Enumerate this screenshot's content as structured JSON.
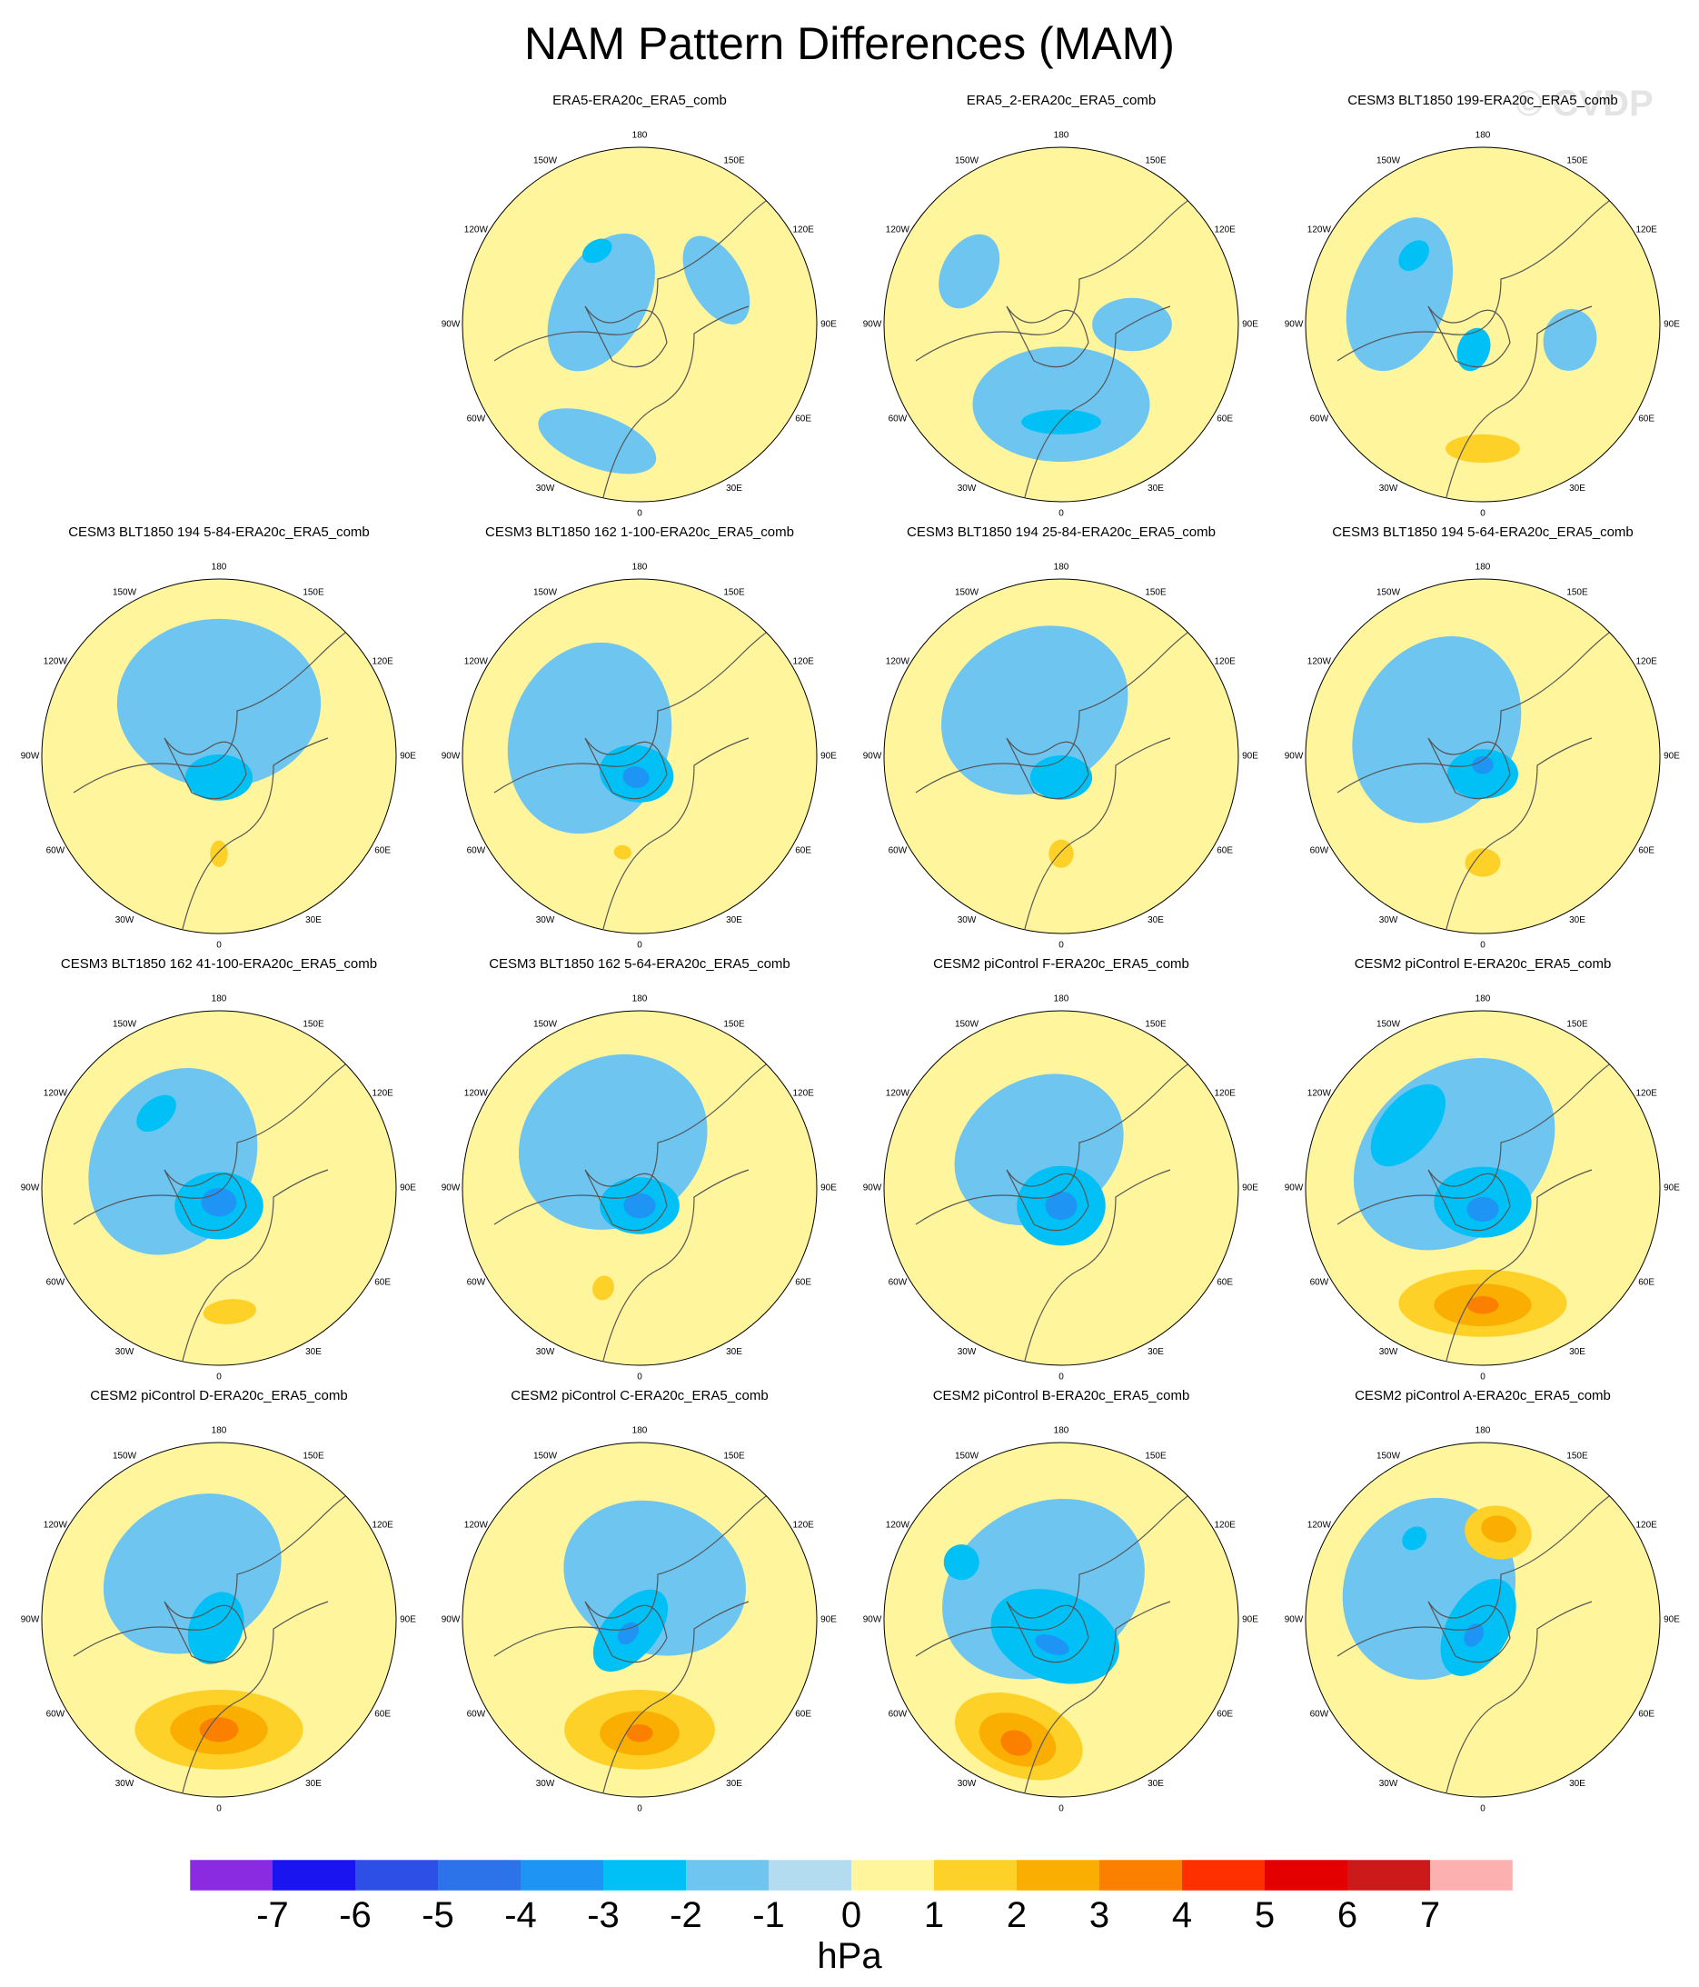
{
  "title": "NAM Pattern Differences (MAM)",
  "watermark": "© CVDP",
  "chart_data": {
    "type": "polar-contour-map-grid",
    "projection": "north polar stereographic",
    "season": "MAM",
    "longitude_labels": [
      "180",
      "150E",
      "120E",
      "90E",
      "60E",
      "30E",
      "0",
      "30W",
      "60W",
      "90W",
      "120W",
      "150W"
    ],
    "panels": [
      {
        "title": "",
        "empty": true
      },
      {
        "title": "ERA5-ERA20c_ERA5_comb",
        "features": [
          {
            "level": -1,
            "lon": 300,
            "r": 0.25,
            "w": 0.85,
            "h": 0.5
          },
          {
            "level": -1,
            "lon": 200,
            "r": 0.7,
            "w": 0.7,
            "h": 0.3
          },
          {
            "level": -1,
            "lon": 60,
            "r": 0.5,
            "w": 0.55,
            "h": 0.3
          },
          {
            "level": -2,
            "lon": 330,
            "r": 0.48,
            "w": 0.18,
            "h": 0.12
          }
        ]
      },
      {
        "title": "ERA5_2-ERA20c_ERA5_comb",
        "features": [
          {
            "level": -1,
            "lon": 180,
            "r": 0.45,
            "w": 1.0,
            "h": 0.65
          },
          {
            "level": -1,
            "lon": 300,
            "r": 0.6,
            "w": 0.45,
            "h": 0.3
          },
          {
            "level": -1,
            "lon": 90,
            "r": 0.4,
            "w": 0.3,
            "h": 0.45
          },
          {
            "level": -2,
            "lon": 180,
            "r": 0.55,
            "w": 0.45,
            "h": 0.14
          }
        ]
      },
      {
        "title": "CESM3 BLT1850 199-ERA20c_ERA5_comb",
        "features": [
          {
            "level": -1,
            "lon": 290,
            "r": 0.5,
            "w": 0.9,
            "h": 0.55
          },
          {
            "level": -1,
            "lon": 100,
            "r": 0.5,
            "w": 0.35,
            "h": 0.3
          },
          {
            "level": -2,
            "lon": 200,
            "r": 0.15,
            "w": 0.18,
            "h": 0.25
          },
          {
            "level": -2,
            "lon": 315,
            "r": 0.55,
            "w": 0.2,
            "h": 0.14
          },
          {
            "level": 1,
            "lon": 180,
            "r": 0.7,
            "w": 0.42,
            "h": 0.16
          }
        ]
      },
      {
        "title": "CESM3 BLT1850 194 5-84-ERA20c_ERA5_comb",
        "features": [
          {
            "level": -1,
            "lon": 0,
            "r": 0.3,
            "w": 1.15,
            "h": 0.95
          },
          {
            "level": -2,
            "lon": 180,
            "r": 0.12,
            "w": 0.38,
            "h": 0.26
          },
          {
            "level": 1,
            "lon": 180,
            "r": 0.55,
            "w": 0.1,
            "h": 0.15
          }
        ]
      },
      {
        "title": "CESM3 BLT1850 162 1-100-ERA20c_ERA5_comb",
        "features": [
          {
            "level": -1,
            "lon": 290,
            "r": 0.3,
            "w": 1.1,
            "h": 0.9
          },
          {
            "level": -2,
            "lon": 190,
            "r": 0.1,
            "w": 0.42,
            "h": 0.32
          },
          {
            "level": -3,
            "lon": 190,
            "r": 0.12,
            "w": 0.15,
            "h": 0.12
          },
          {
            "level": 1,
            "lon": 190,
            "r": 0.55,
            "w": 0.1,
            "h": 0.08
          }
        ]
      },
      {
        "title": "CESM3 BLT1850 194 25-84-ERA20c_ERA5_comb",
        "features": [
          {
            "level": -1,
            "lon": 330,
            "r": 0.3,
            "w": 1.1,
            "h": 0.9
          },
          {
            "level": -2,
            "lon": 180,
            "r": 0.12,
            "w": 0.35,
            "h": 0.25
          },
          {
            "level": 1,
            "lon": 180,
            "r": 0.55,
            "w": 0.14,
            "h": 0.16
          }
        ]
      },
      {
        "title": "CESM3 BLT1850 194 5-64-ERA20c_ERA5_comb",
        "features": [
          {
            "level": -1,
            "lon": 300,
            "r": 0.3,
            "w": 1.1,
            "h": 0.9
          },
          {
            "level": -2,
            "lon": 180,
            "r": 0.1,
            "w": 0.4,
            "h": 0.28
          },
          {
            "level": -3,
            "lon": 180,
            "r": 0.05,
            "w": 0.12,
            "h": 0.1
          },
          {
            "level": 1,
            "lon": 180,
            "r": 0.6,
            "w": 0.2,
            "h": 0.16
          }
        ]
      },
      {
        "title": "CESM3 BLT1850 162 41-100-ERA20c_ERA5_comb",
        "features": [
          {
            "level": -1,
            "lon": 300,
            "r": 0.3,
            "w": 1.1,
            "h": 0.9
          },
          {
            "level": -2,
            "lon": 180,
            "r": 0.1,
            "w": 0.5,
            "h": 0.38
          },
          {
            "level": -3,
            "lon": 180,
            "r": 0.08,
            "w": 0.2,
            "h": 0.16
          },
          {
            "level": -2,
            "lon": 320,
            "r": 0.55,
            "w": 0.26,
            "h": 0.16
          },
          {
            "level": 1,
            "lon": 175,
            "r": 0.7,
            "w": 0.3,
            "h": 0.14
          }
        ]
      },
      {
        "title": "CESM3 BLT1850 162 5-64-ERA20c_ERA5_comb",
        "features": [
          {
            "level": -1,
            "lon": 330,
            "r": 0.3,
            "w": 1.1,
            "h": 0.95
          },
          {
            "level": -2,
            "lon": 180,
            "r": 0.1,
            "w": 0.45,
            "h": 0.32
          },
          {
            "level": -3,
            "lon": 180,
            "r": 0.1,
            "w": 0.18,
            "h": 0.14
          },
          {
            "level": 1,
            "lon": 200,
            "r": 0.6,
            "w": 0.12,
            "h": 0.14
          }
        ]
      },
      {
        "title": "CESM2 piControl F-ERA20c_ERA5_comb",
        "features": [
          {
            "level": -1,
            "lon": 330,
            "r": 0.25,
            "w": 1.0,
            "h": 0.8
          },
          {
            "level": -2,
            "lon": 180,
            "r": 0.1,
            "w": 0.5,
            "h": 0.45
          },
          {
            "level": -3,
            "lon": 180,
            "r": 0.1,
            "w": 0.18,
            "h": 0.16
          }
        ]
      },
      {
        "title": "CESM2 piControl E-ERA20c_ERA5_comb",
        "features": [
          {
            "level": -1,
            "lon": 320,
            "r": 0.25,
            "w": 1.25,
            "h": 0.95
          },
          {
            "level": -2,
            "lon": 180,
            "r": 0.08,
            "w": 0.55,
            "h": 0.4
          },
          {
            "level": -3,
            "lon": 180,
            "r": 0.12,
            "w": 0.18,
            "h": 0.14
          },
          {
            "level": -2,
            "lon": 310,
            "r": 0.55,
            "w": 0.55,
            "h": 0.3
          },
          {
            "level": 1,
            "lon": 180,
            "r": 0.65,
            "w": 0.95,
            "h": 0.38
          },
          {
            "level": 2,
            "lon": 180,
            "r": 0.66,
            "w": 0.55,
            "h": 0.24
          },
          {
            "level": 3,
            "lon": 180,
            "r": 0.66,
            "w": 0.18,
            "h": 0.1
          }
        ]
      },
      {
        "title": "CESM2 piControl D-ERA20c_ERA5_comb",
        "features": [
          {
            "level": -1,
            "lon": 330,
            "r": 0.3,
            "w": 1.05,
            "h": 0.85
          },
          {
            "level": -2,
            "lon": 200,
            "r": 0.05,
            "w": 0.3,
            "h": 0.42
          },
          {
            "level": 1,
            "lon": 180,
            "r": 0.62,
            "w": 0.95,
            "h": 0.45
          },
          {
            "level": 2,
            "lon": 180,
            "r": 0.62,
            "w": 0.55,
            "h": 0.28
          },
          {
            "level": 3,
            "lon": 180,
            "r": 0.62,
            "w": 0.22,
            "h": 0.14
          }
        ]
      },
      {
        "title": "CESM2 piControl C-ERA20c_ERA5_comb",
        "features": [
          {
            "level": -1,
            "lon": 20,
            "r": 0.25,
            "w": 1.05,
            "h": 0.85
          },
          {
            "level": -2,
            "lon": 220,
            "r": 0.08,
            "w": 0.3,
            "h": 0.55
          },
          {
            "level": -3,
            "lon": 220,
            "r": 0.1,
            "w": 0.1,
            "h": 0.14
          },
          {
            "level": 1,
            "lon": 180,
            "r": 0.62,
            "w": 0.85,
            "h": 0.45
          },
          {
            "level": 2,
            "lon": 180,
            "r": 0.64,
            "w": 0.45,
            "h": 0.25
          },
          {
            "level": 3,
            "lon": 180,
            "r": 0.64,
            "w": 0.15,
            "h": 0.1
          }
        ]
      },
      {
        "title": "CESM2 piControl B-ERA20c_ERA5_comb",
        "features": [
          {
            "level": -1,
            "lon": 330,
            "r": 0.2,
            "w": 1.2,
            "h": 0.95
          },
          {
            "level": -2,
            "lon": 200,
            "r": 0.1,
            "w": 0.75,
            "h": 0.5
          },
          {
            "level": -3,
            "lon": 200,
            "r": 0.15,
            "w": 0.2,
            "h": 0.1
          },
          {
            "level": -2,
            "lon": 300,
            "r": 0.65,
            "w": 0.2,
            "h": 0.2
          },
          {
            "level": 1,
            "lon": 200,
            "r": 0.7,
            "w": 0.75,
            "h": 0.45
          },
          {
            "level": 2,
            "lon": 200,
            "r": 0.72,
            "w": 0.45,
            "h": 0.28
          },
          {
            "level": 3,
            "lon": 200,
            "r": 0.74,
            "w": 0.18,
            "h": 0.14
          }
        ]
      },
      {
        "title": "CESM2 piControl A-ERA20c_ERA5_comb",
        "features": [
          {
            "level": -1,
            "lon": 300,
            "r": 0.35,
            "w": 1.05,
            "h": 0.95
          },
          {
            "level": -2,
            "lon": 210,
            "r": 0.05,
            "w": 0.35,
            "h": 0.6
          },
          {
            "level": -3,
            "lon": 210,
            "r": 0.1,
            "w": 0.1,
            "h": 0.14
          },
          {
            "level": -2,
            "lon": 320,
            "r": 0.6,
            "w": 0.15,
            "h": 0.12
          },
          {
            "level": 1,
            "lon": 10,
            "r": 0.5,
            "w": 0.38,
            "h": 0.3
          },
          {
            "level": 2,
            "lon": 10,
            "r": 0.52,
            "w": 0.2,
            "h": 0.15
          }
        ]
      }
    ],
    "colorbar": {
      "units": "hPa",
      "tick_labels": [
        "-7",
        "-6",
        "-5",
        "-4",
        "-3",
        "-2",
        "-1",
        "0",
        "1",
        "2",
        "3",
        "4",
        "5",
        "6",
        "7"
      ],
      "colors": [
        "#8a2be2",
        "#1a14f0",
        "#2d4fe6",
        "#2c72e8",
        "#1e95f5",
        "#00c0f5",
        "#6ec5f0",
        "#b4dcf0",
        "#fff59d",
        "#fdd128",
        "#fbae02",
        "#fb8000",
        "#ff3000",
        "#e40000",
        "#cc1a1a",
        "#fdb0b0"
      ]
    }
  }
}
